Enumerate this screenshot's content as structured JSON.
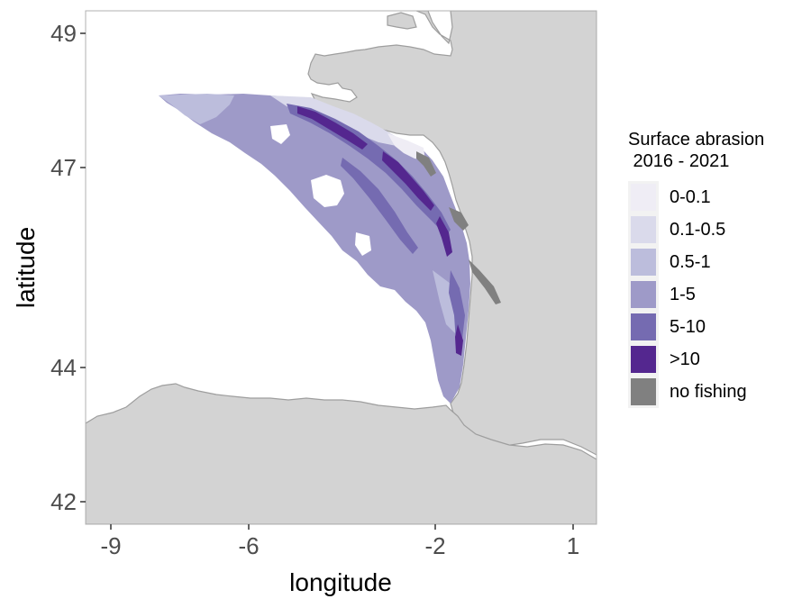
{
  "map": {
    "xlabel": "longitude",
    "ylabel": "latitude",
    "x_ticks": [
      "-9",
      "-6",
      "-2",
      "1"
    ],
    "y_ticks": [
      "49",
      "47",
      "44",
      "42"
    ],
    "land_color": "#d3d3d3",
    "coast_color": "#9e9e9e",
    "background_color": "#ffffff"
  },
  "legend": {
    "title": "Surface abrasion\n 2016 - 2021",
    "items": [
      {
        "label": "0-0.1",
        "color": "#efedf5"
      },
      {
        "label": "0.1-0.5",
        "color": "#dadaeb"
      },
      {
        "label": "0.5-1",
        "color": "#bcbddc"
      },
      {
        "label": "1-5",
        "color": "#9e9ac8"
      },
      {
        "label": "5-10",
        "color": "#756bb1"
      },
      {
        "label": ">10",
        "color": "#54278f"
      },
      {
        "label": "no fishing",
        "color": "#808080"
      }
    ]
  }
}
